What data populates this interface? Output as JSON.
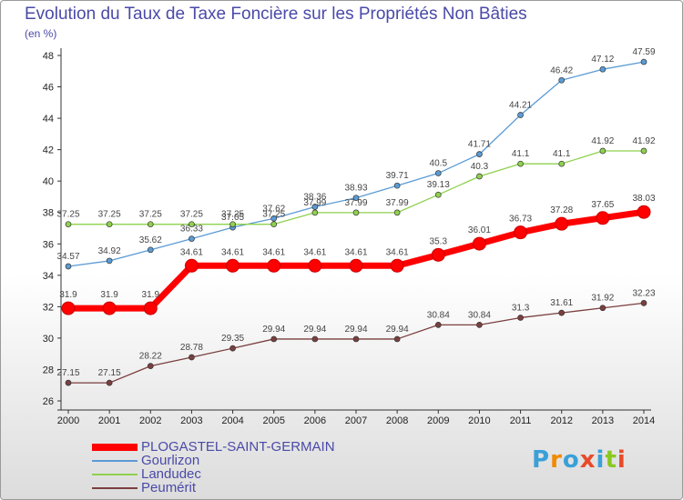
{
  "title": "Evolution du Taux de Taxe Foncière sur les Propriétés Non Bâties",
  "subtitle": "(en %)",
  "logo": {
    "text": "Proxiti",
    "colors": [
      "#3aa0d8",
      "#f08a00",
      "#3aa0d8",
      "#e84a2a",
      "#3aa0d8",
      "#8ac820",
      "#e84a2a"
    ]
  },
  "chart_data": {
    "type": "line",
    "x": [
      "2000",
      "2001",
      "2002",
      "2003",
      "2004",
      "2005",
      "2006",
      "2007",
      "2008",
      "2009",
      "2010",
      "2011",
      "2012",
      "2013",
      "2014"
    ],
    "xlim": [
      2000,
      2014
    ],
    "ylim": [
      26,
      48
    ],
    "yticks": [
      26,
      28,
      30,
      32,
      34,
      36,
      38,
      40,
      42,
      44,
      46,
      48
    ],
    "grid": false,
    "legend_position": "bottom-left",
    "series": [
      {
        "name": "PLOGASTEL-SAINT-GERMAIN",
        "color": "#ff0000",
        "emphasis": true,
        "values": [
          31.9,
          31.9,
          31.9,
          34.61,
          34.61,
          34.61,
          34.61,
          34.61,
          34.61,
          35.3,
          36.01,
          36.73,
          37.28,
          37.65,
          38.03
        ]
      },
      {
        "name": "Gourlizon",
        "color": "#5b9bd5",
        "values": [
          34.57,
          34.92,
          35.62,
          36.33,
          37.05,
          37.62,
          38.36,
          38.93,
          39.71,
          40.5,
          41.71,
          44.21,
          46.42,
          47.12,
          47.59
        ]
      },
      {
        "name": "Landudec",
        "color": "#8fd14f",
        "values": [
          37.25,
          37.25,
          37.25,
          37.25,
          37.25,
          37.25,
          37.99,
          37.99,
          37.99,
          39.13,
          40.3,
          41.1,
          41.1,
          41.92,
          41.92
        ]
      },
      {
        "name": "Peumérit",
        "color": "#7b3f3f",
        "values": [
          27.15,
          27.15,
          28.22,
          28.78,
          29.35,
          29.94,
          29.94,
          29.94,
          29.94,
          30.84,
          30.84,
          31.3,
          31.61,
          31.92,
          32.23
        ]
      }
    ]
  }
}
